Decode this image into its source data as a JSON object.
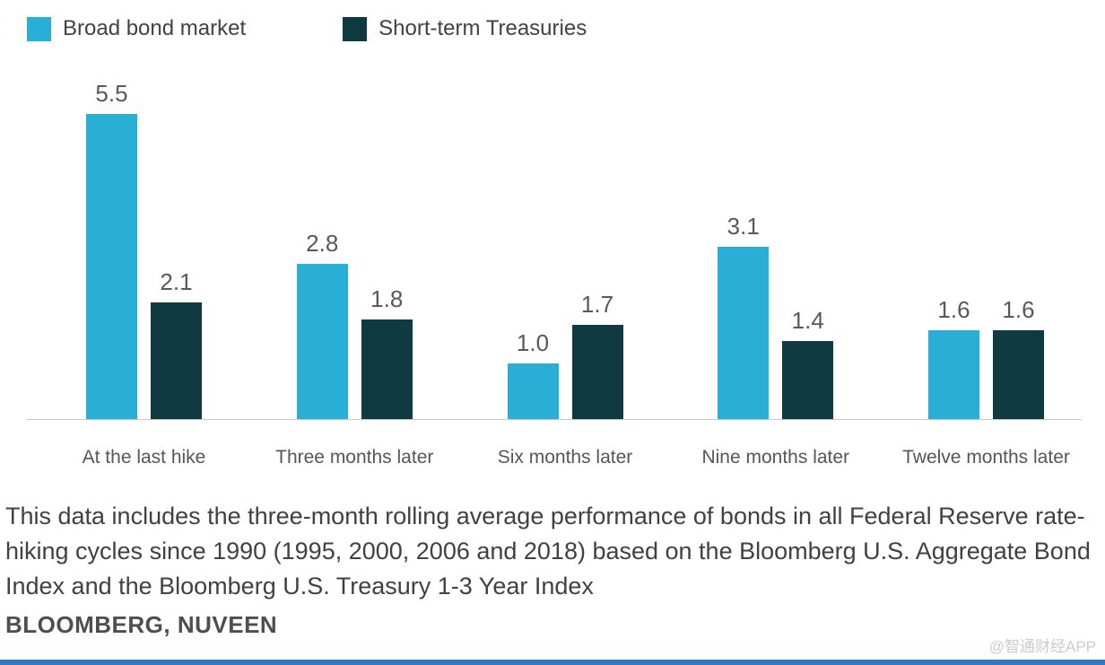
{
  "chart_data": {
    "type": "bar",
    "categories": [
      "At the last hike",
      "Three months later",
      "Six months later",
      "Nine months later",
      "Twelve months later"
    ],
    "series": [
      {
        "name": "Broad bond market",
        "color": "#29aed6",
        "values": [
          5.5,
          2.8,
          1.0,
          3.1,
          1.6
        ]
      },
      {
        "name": "Short-term Treasuries",
        "color": "#0f3a41",
        "values": [
          2.1,
          1.8,
          1.7,
          1.4,
          1.6
        ]
      }
    ],
    "title": "",
    "xlabel": "",
    "ylabel": "",
    "ylim": [
      0,
      5.5
    ],
    "value_labels": true,
    "grid": false,
    "legend_position": "top-left"
  },
  "footnote": "This data includes the three-month rolling average performance of bonds in all Federal Reserve rate-hiking cycles since 1990 (1995, 2000, 2006 and 2018) based on the Bloomberg U.S. Aggregate Bond Index and the Bloomberg U.S. Treasury 1-3 Year Index",
  "source": "BLOOMBERG, NUVEEN",
  "watermark": "@智通财经APP",
  "colors": {
    "series_broad": "#29aed6",
    "series_short_term": "#0f3a41",
    "axis_line": "#c9cacb",
    "value_label": "#58595b",
    "category_label": "#55565a",
    "footnote_text": "#414042",
    "bottom_bar": "#3279be",
    "watermark_text": "#cbcbcb"
  }
}
